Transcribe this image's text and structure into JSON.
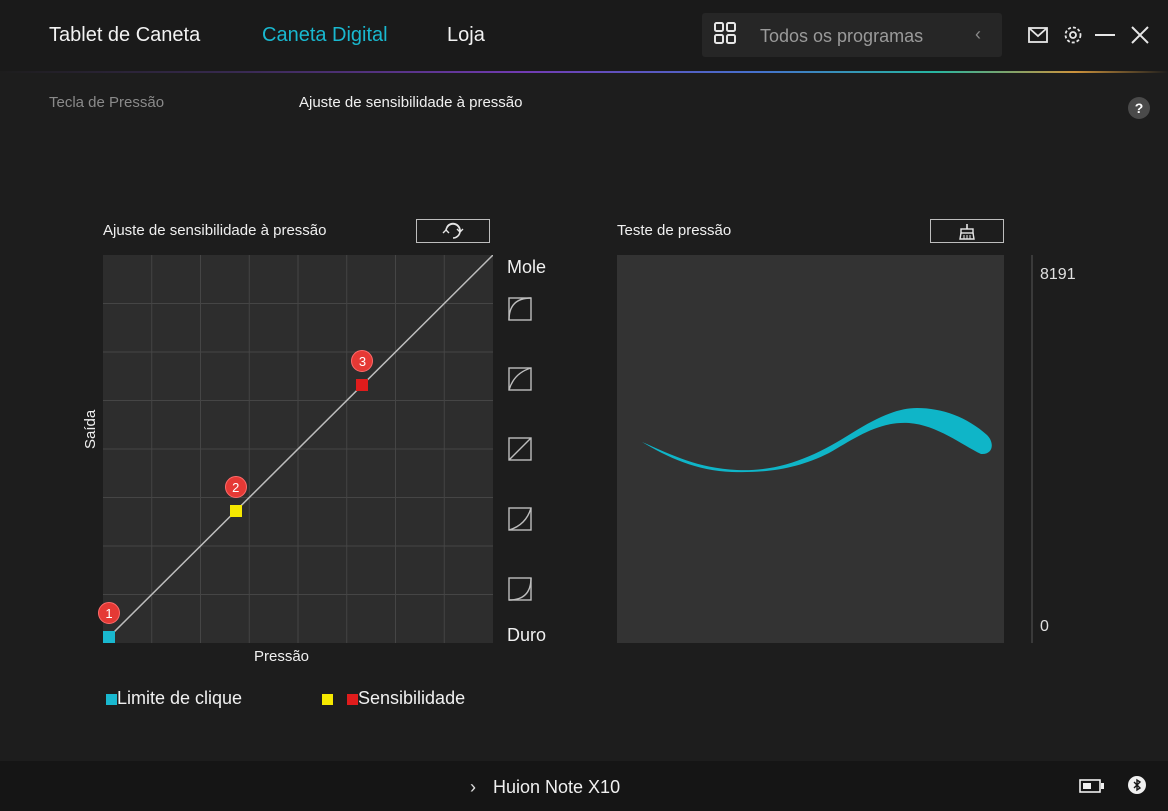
{
  "nav": {
    "tablet": "Tablet de Caneta",
    "pen": "Caneta Digital",
    "store": "Loja",
    "search_placeholder": "Todos os programas"
  },
  "subtabs": {
    "pressure_key": "Tecla de Pressão",
    "sensitivity": "Ajuste de sensibilidade à pressão"
  },
  "curve_panel": {
    "title": "Ajuste de sensibilidade à pressão",
    "xlabel": "Pressão",
    "ylabel": "Saída",
    "soft_label": "Mole",
    "hard_label": "Duro",
    "points": [
      {
        "label": "1",
        "pressure": 0,
        "output": 0,
        "color": "#19b8cf"
      },
      {
        "label": "2",
        "pressure": 0.33,
        "output": 0.33,
        "color": "#f5e800"
      },
      {
        "label": "3",
        "pressure": 0.66,
        "output": 0.66,
        "color": "#e01c1c"
      }
    ]
  },
  "test_panel": {
    "title": "Teste de pressão",
    "max_value": "8191",
    "min_value": "0",
    "stroke_color": "#0fb5c8"
  },
  "legend": {
    "click_limit": "Limite de clique",
    "sensitivity": "Sensibilidade"
  },
  "footer": {
    "device_name": "Huion Note X10"
  },
  "colors": {
    "accent": "#19b8cf",
    "point_yellow": "#f5e800",
    "point_red": "#e01c1c"
  }
}
